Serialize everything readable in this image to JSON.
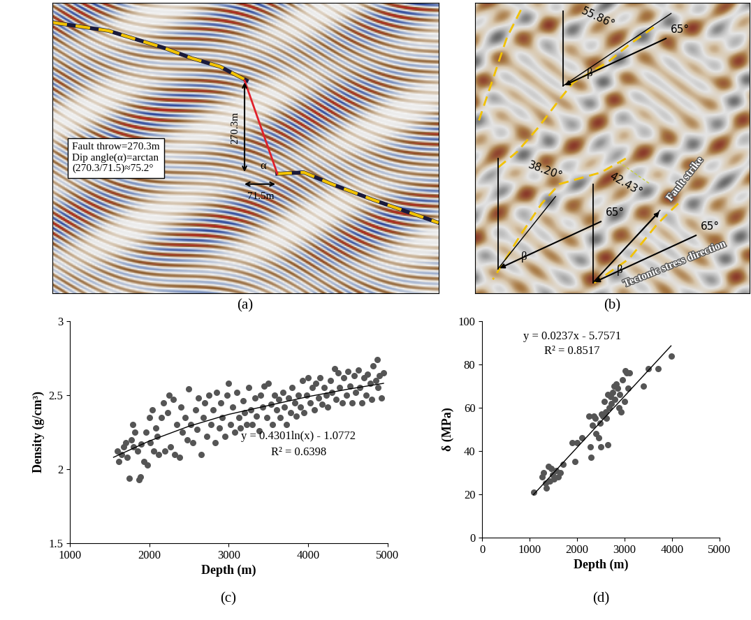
{
  "chart_data": [
    {
      "type": "seismic_section",
      "panel_label": "(a)",
      "box_text": [
        "Fault throw=270.3m",
        "Dip angle(α)=arctan",
        "(270.3/71.5)≈75.2°"
      ],
      "throw_label": "270.3m",
      "heave_label": "71.5m",
      "angle_label": "α"
    },
    {
      "type": "seismic_map",
      "panel_label": "(b)",
      "angle_labels": [
        "55.86°",
        "38.20°",
        "42.43°"
      ],
      "stress_labels": [
        "65°",
        "65°",
        "65°"
      ],
      "beta_labels": [
        "β",
        "β",
        "β"
      ],
      "fault_strike_label": "Fault strike",
      "stress_direction_label": "Tectonic stress direction"
    },
    {
      "type": "scatter",
      "panel_label": "(c)",
      "x_label": "Depth (m)",
      "y_label": "Density (g/cm³)",
      "annotations": [
        "y = 0.4301ln(x) - 1.0772",
        "R² = 0.6398"
      ],
      "xlim": [
        1000,
        5000
      ],
      "xticks": [
        1000,
        2000,
        3000,
        4000,
        5000
      ],
      "ylim": [
        1.5,
        3
      ],
      "yticks": [
        1.5,
        2,
        2.5,
        3
      ],
      "color": "#555555",
      "x": [
        1600,
        1620,
        1650,
        1680,
        1700,
        1720,
        1750,
        1770,
        1790,
        1800,
        1820,
        1850,
        1870,
        1890,
        1900,
        1930,
        1960,
        1980,
        2000,
        2010,
        2040,
        2060,
        2080,
        2100,
        2120,
        2150,
        2180,
        2200,
        2230,
        2250,
        2270,
        2300,
        2320,
        2350,
        2380,
        2400,
        2420,
        2450,
        2480,
        2500,
        2520,
        2550,
        2580,
        2600,
        2620,
        2650,
        2680,
        2700,
        2720,
        2750,
        2780,
        2800,
        2830,
        2850,
        2880,
        2900,
        2920,
        2950,
        2980,
        3000,
        3020,
        3050,
        3080,
        3100,
        3130,
        3150,
        3180,
        3200,
        3230,
        3250,
        3280,
        3300,
        3330,
        3350,
        3380,
        3400,
        3430,
        3450,
        3480,
        3500,
        3530,
        3550,
        3580,
        3600,
        3630,
        3650,
        3680,
        3700,
        3730,
        3750,
        3780,
        3800,
        3830,
        3850,
        3880,
        3900,
        3930,
        3950,
        3980,
        4000,
        4030,
        4050,
        4080,
        4100,
        4130,
        4150,
        4180,
        4200,
        4230,
        4250,
        4280,
        4300,
        4330,
        4350,
        4380,
        4400,
        4430,
        4450,
        4480,
        4500,
        4530,
        4550,
        4580,
        4600,
        4630,
        4650,
        4680,
        4700,
        4730,
        4750,
        4780,
        4800,
        4820,
        4850,
        4870,
        4880,
        4900,
        4920,
        4950
      ],
      "values": [
        2.12,
        2.05,
        2.1,
        2.15,
        2.18,
        2.08,
        1.94,
        2.2,
        2.3,
        2.15,
        2.25,
        2.12,
        1.93,
        1.95,
        2.17,
        2.05,
        2.25,
        2.03,
        2.35,
        2.18,
        2.4,
        2.12,
        2.28,
        2.22,
        2.1,
        2.35,
        2.45,
        2.12,
        2.38,
        2.5,
        2.15,
        2.47,
        2.1,
        2.3,
        2.08,
        2.42,
        2.25,
        2.35,
        2.2,
        2.54,
        2.3,
        2.18,
        2.4,
        2.27,
        2.48,
        2.1,
        2.35,
        2.45,
        2.22,
        2.5,
        2.3,
        2.4,
        2.18,
        2.52,
        2.28,
        2.45,
        2.35,
        2.22,
        2.5,
        2.58,
        2.3,
        2.42,
        2.25,
        2.52,
        2.35,
        2.28,
        2.46,
        2.38,
        2.3,
        2.55,
        2.4,
        2.3,
        2.48,
        2.36,
        2.26,
        2.5,
        2.42,
        2.56,
        2.35,
        2.58,
        2.44,
        2.3,
        2.5,
        2.4,
        2.47,
        2.35,
        2.52,
        2.42,
        2.3,
        2.48,
        2.38,
        2.55,
        2.45,
        2.36,
        2.5,
        2.42,
        2.6,
        2.38,
        2.5,
        2.62,
        2.45,
        2.55,
        2.4,
        2.58,
        2.48,
        2.62,
        2.44,
        2.55,
        2.5,
        2.42,
        2.6,
        2.52,
        2.68,
        2.47,
        2.65,
        2.55,
        2.45,
        2.62,
        2.5,
        2.66,
        2.56,
        2.45,
        2.63,
        2.52,
        2.67,
        2.55,
        2.45,
        2.62,
        2.5,
        2.64,
        2.58,
        2.47,
        2.7,
        2.6,
        2.74,
        2.55,
        2.63,
        2.48,
        2.65
      ],
      "trendline": {
        "x": [
          1550,
          2000,
          2500,
          3000,
          3500,
          4000,
          4500,
          4950
        ],
        "values": [
          2.08,
          2.19,
          2.29,
          2.37,
          2.43,
          2.49,
          2.54,
          2.58
        ]
      }
    },
    {
      "type": "scatter",
      "panel_label": "(d)",
      "x_label": "Depth (m)",
      "y_label": "δ (MPa)",
      "annotations": [
        "y = 0.0237x - 5.7571",
        "R² = 0.8517"
      ],
      "xlim": [
        0,
        5000
      ],
      "xticks": [
        0,
        1000,
        2000,
        3000,
        4000,
        5000
      ],
      "ylim": [
        0,
        100
      ],
      "yticks": [
        0,
        20,
        40,
        60,
        80,
        100
      ],
      "color": "#555555",
      "x": [
        1080,
        1270,
        1290,
        1330,
        1350,
        1400,
        1420,
        1450,
        1480,
        1520,
        1560,
        1600,
        1650,
        1700,
        1900,
        1950,
        2000,
        2100,
        2250,
        2280,
        2300,
        2320,
        2350,
        2380,
        2400,
        2450,
        2480,
        2500,
        2520,
        2550,
        2580,
        2600,
        2620,
        2640,
        2650,
        2680,
        2700,
        2720,
        2750,
        2780,
        2800,
        2820,
        2850,
        2880,
        2900,
        2930,
        2950,
        3000,
        3020,
        3050,
        3080,
        3100,
        3400,
        3500,
        3700,
        3980
      ],
      "values": [
        21,
        28,
        30,
        25,
        23,
        33,
        26,
        32,
        29,
        27,
        31,
        28,
        30,
        34,
        44,
        35,
        44,
        46,
        56,
        42,
        37,
        52,
        56,
        55,
        48,
        46,
        53,
        42,
        57,
        56,
        63,
        58,
        55,
        43,
        66,
        60,
        65,
        62,
        67,
        70,
        64,
        71,
        69,
        60,
        66,
        58,
        73,
        63,
        77,
        76,
        69,
        76,
        70,
        78,
        78,
        84
      ],
      "trendline": {
        "x": [
          1080,
          3980
        ],
        "values": [
          19.8,
          88.6
        ]
      }
    }
  ]
}
